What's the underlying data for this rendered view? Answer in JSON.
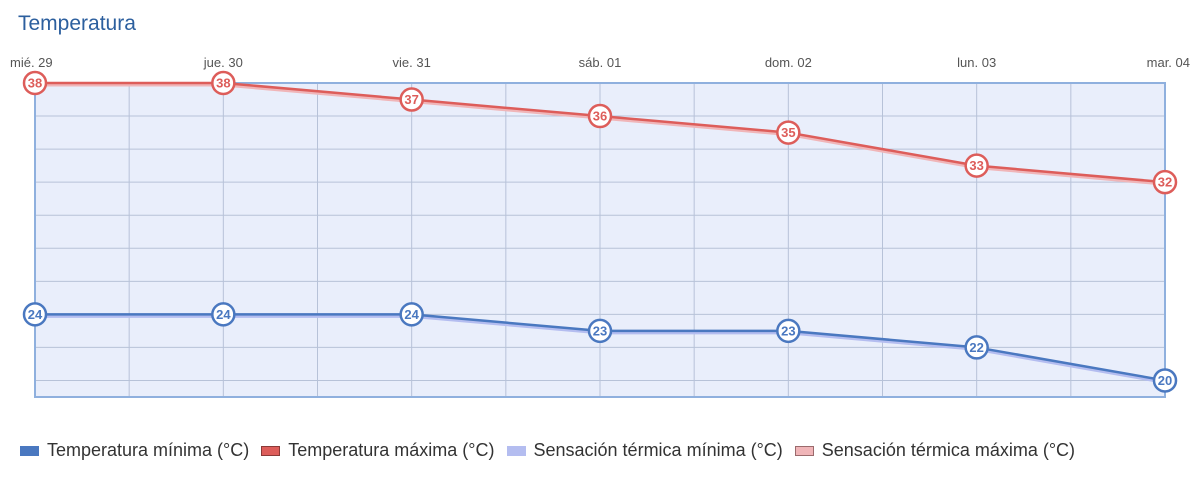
{
  "title": "Temperatura",
  "colors": {
    "min": "#4a78c0",
    "max": "#dd5d5a",
    "feels_min": "#b4bdf0",
    "feels_max": "#f0b5b8",
    "plot_bg": "#e9eefb",
    "plot_border": "#8fb0de",
    "grid": "#b7c2d8"
  },
  "chart_data": {
    "type": "line",
    "title": "Temperatura",
    "categories": [
      "mié. 29",
      "jue. 30",
      "vie. 31",
      "sáb. 01",
      "dom. 02",
      "lun. 03",
      "mar. 04"
    ],
    "series": [
      {
        "name": "Temperatura mínima (°C)",
        "values": [
          24,
          24,
          24,
          23,
          23,
          22,
          20
        ]
      },
      {
        "name": "Temperatura máxima (°C)",
        "values": [
          38,
          38,
          37,
          36,
          35,
          33,
          32
        ]
      },
      {
        "name": "Sensación térmica mínima (°C)",
        "values": [
          24,
          24,
          24,
          23,
          23,
          22,
          20
        ]
      },
      {
        "name": "Sensación térmica máxima (°C)",
        "values": [
          38,
          38,
          37,
          36,
          35,
          33,
          32
        ]
      }
    ],
    "ylim": [
      19,
      38
    ],
    "grid": true,
    "legend_position": "bottom"
  }
}
